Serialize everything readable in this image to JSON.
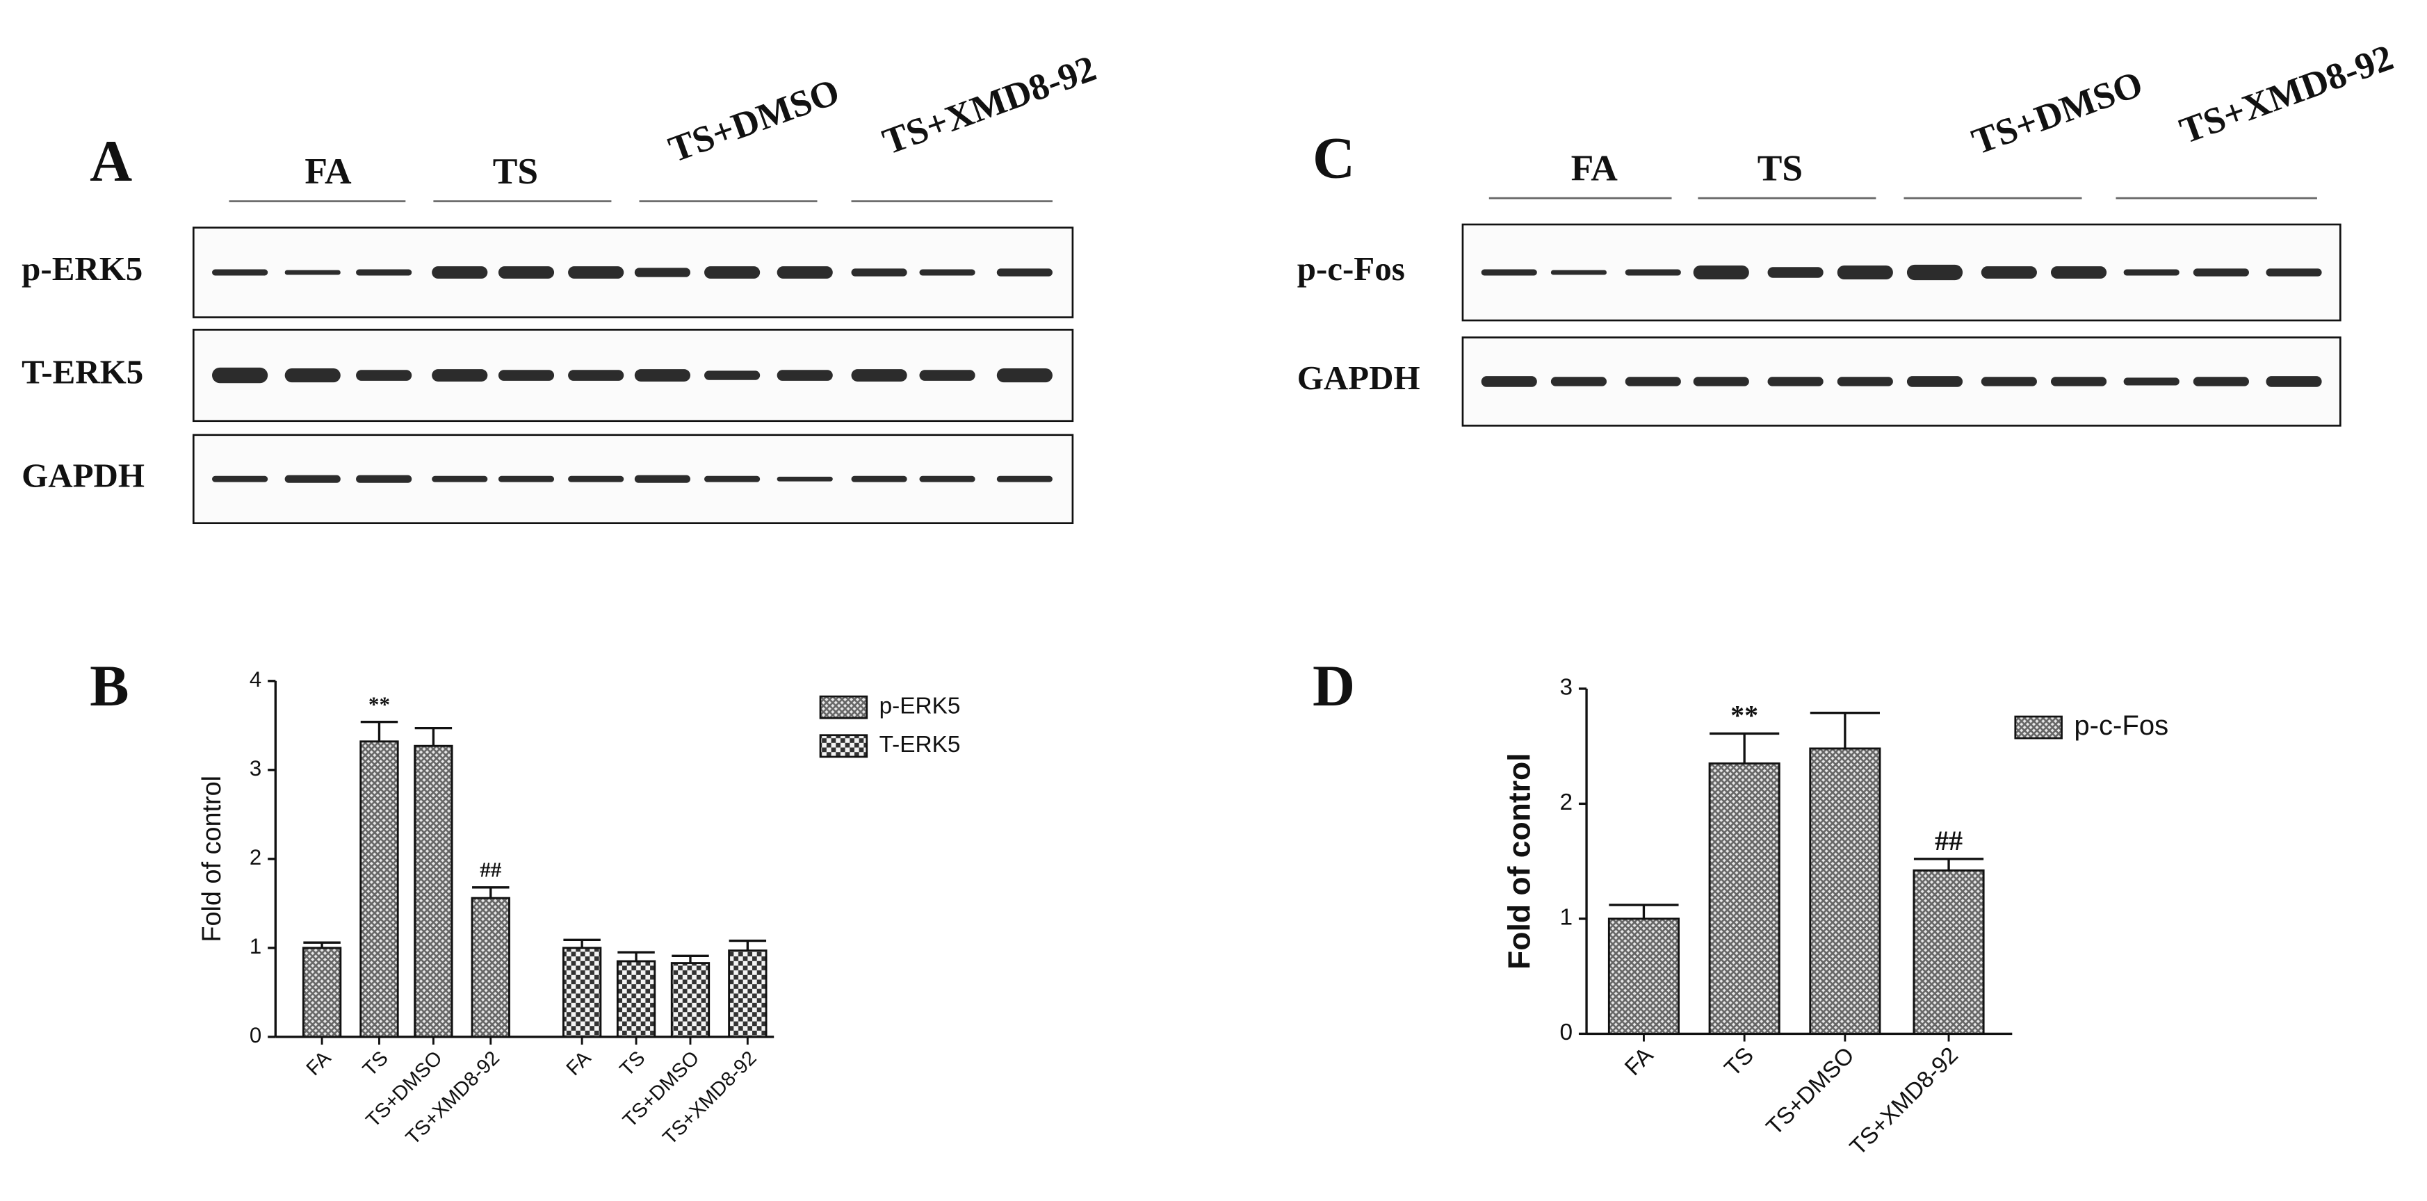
{
  "blots": [
    {
      "panel": "A",
      "groups": [
        "FA",
        "TS",
        "TS+DMSO",
        "TS+XMD8-92"
      ],
      "rows": [
        "p-ERK5",
        "T-ERK5",
        "GAPDH"
      ]
    },
    {
      "panel": "C",
      "groups": [
        "FA",
        "TS",
        "TS+DMSO",
        "TS+XMD8-92"
      ],
      "rows": [
        "p-c-Fos",
        "GAPDH"
      ]
    }
  ],
  "chart_data": [
    {
      "type": "bar",
      "panel": "B",
      "ylabel": "Fold of control",
      "categories": [
        "FA",
        "TS",
        "TS+DMSO",
        "TS+XMD8-92"
      ],
      "series": [
        {
          "name": "p-ERK5",
          "color": "#666666",
          "pattern": "crosshatch",
          "values": [
            1.0,
            3.32,
            3.27,
            1.56
          ],
          "errors": [
            0.06,
            0.22,
            0.2,
            0.12
          ],
          "annotations": [
            null,
            "**",
            null,
            "##"
          ]
        },
        {
          "name": "T-ERK5",
          "color": "#333333",
          "pattern": "checker",
          "values": [
            1.0,
            0.85,
            0.83,
            0.97
          ],
          "errors": [
            0.09,
            0.1,
            0.08,
            0.11
          ],
          "annotations": [
            null,
            null,
            null,
            null
          ]
        }
      ],
      "ylim": [
        0,
        4
      ],
      "yticks": [
        0,
        1,
        2,
        3,
        4
      ],
      "legend": "upper right"
    },
    {
      "type": "bar",
      "panel": "D",
      "ylabel": "Fold of control",
      "categories": [
        "FA",
        "TS",
        "TS+DMSO",
        "TS+XMD8-92"
      ],
      "series": [
        {
          "name": "p-c-Fos",
          "color": "#666666",
          "pattern": "crosshatch",
          "values": [
            1.0,
            2.35,
            2.48,
            1.42
          ],
          "errors": [
            0.12,
            0.26,
            0.31,
            0.1
          ],
          "annotations": [
            null,
            "**",
            null,
            "##"
          ]
        }
      ],
      "ylim": [
        0,
        3
      ],
      "yticks": [
        0,
        1,
        2,
        3
      ],
      "legend": "upper right"
    }
  ]
}
